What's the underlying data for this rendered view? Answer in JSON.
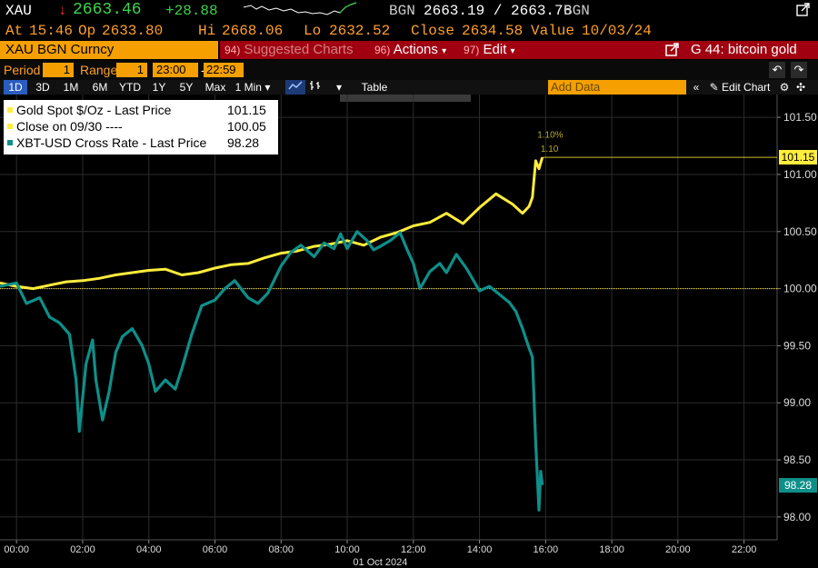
{
  "header": {
    "ticker": "XAU",
    "arrow": "↓",
    "last": "2663.46",
    "change": "+28.88",
    "source1": "BGN",
    "bid_ask": "2663.19 / 2663.76",
    "source2": "BGN",
    "at_label": "At",
    "time": "15:46",
    "op_label": "Op",
    "open": "2633.80",
    "hi_label": "Hi",
    "high": "2668.06",
    "lo_label": "Lo",
    "low": "2632.52",
    "close_label": "Close",
    "close": "2634.58",
    "value_label": "Value",
    "value_date": "10/03/24"
  },
  "toolbar": {
    "security": "XAU BGN Curncy",
    "menu1_num": "94)",
    "menu1": "Suggested Charts",
    "menu2_num": "96)",
    "menu2": "Actions",
    "menu3_num": "97)",
    "menu3": "Edit",
    "chart_title": "G 44: bitcoin gold"
  },
  "settings": {
    "period_label": "Period",
    "period": "1",
    "range_label": "Range",
    "range": "1",
    "start": "23:00",
    "end": "22:59"
  },
  "timeframes": [
    "1D",
    "3D",
    "1M",
    "6M",
    "YTD",
    "1Y",
    "5Y",
    "Max"
  ],
  "interval": "1 Min",
  "table_label": "Table",
  "add_data_placeholder": "Add Data",
  "edit_chart": "Edit Chart",
  "colors": {
    "gold": "#ffec3c",
    "btc": "#0e8f8a",
    "orange": "#f5a000",
    "red": "#a00010"
  },
  "chart_data": {
    "type": "line",
    "title": "",
    "xlabel": "01 Oct 2024",
    "ylabel": "",
    "x_ticks": [
      "00:00",
      "02:00",
      "04:00",
      "06:00",
      "08:00",
      "10:00",
      "12:00",
      "14:00",
      "16:00",
      "18:00",
      "20:00",
      "22:00"
    ],
    "x_range": [
      -0.5,
      23.0
    ],
    "y_ticks": [
      "101.50",
      "101.00",
      "100.50",
      "100.00",
      "99.50",
      "99.00",
      "98.50",
      "98.00"
    ],
    "ylim": [
      97.8,
      101.7
    ],
    "reference_line": 100.0,
    "grid": true,
    "legend_position": "top-left",
    "series": [
      {
        "name": "Gold Spot $/Oz - Last Price",
        "last_value": "101.15",
        "points": [
          [
            -0.5,
            100.05
          ],
          [
            0.0,
            100.02
          ],
          [
            0.5,
            100.0
          ],
          [
            1.0,
            100.03
          ],
          [
            1.5,
            100.06
          ],
          [
            2.0,
            100.07
          ],
          [
            2.5,
            100.09
          ],
          [
            3.0,
            100.12
          ],
          [
            3.5,
            100.14
          ],
          [
            4.0,
            100.16
          ],
          [
            4.5,
            100.17
          ],
          [
            5.0,
            100.12
          ],
          [
            5.5,
            100.14
          ],
          [
            6.0,
            100.18
          ],
          [
            6.5,
            100.21
          ],
          [
            7.0,
            100.22
          ],
          [
            7.5,
            100.27
          ],
          [
            8.0,
            100.31
          ],
          [
            8.5,
            100.33
          ],
          [
            9.0,
            100.37
          ],
          [
            9.5,
            100.39
          ],
          [
            10.0,
            100.42
          ],
          [
            10.5,
            100.38
          ],
          [
            11.0,
            100.45
          ],
          [
            11.5,
            100.49
          ],
          [
            12.0,
            100.55
          ],
          [
            12.5,
            100.58
          ],
          [
            13.0,
            100.66
          ],
          [
            13.5,
            100.57
          ],
          [
            14.0,
            100.71
          ],
          [
            14.5,
            100.83
          ],
          [
            15.0,
            100.74
          ],
          [
            15.3,
            100.66
          ],
          [
            15.5,
            100.72
          ],
          [
            15.6,
            100.8
          ],
          [
            15.7,
            101.12
          ],
          [
            15.8,
            101.05
          ],
          [
            15.9,
            101.15
          ]
        ]
      },
      {
        "name": "Close on 09/30 ----",
        "last_value": "100.05",
        "points": []
      },
      {
        "name": "XBT-USD Cross Rate - Last Price",
        "last_value": "98.28",
        "points": [
          [
            -0.5,
            100.02
          ],
          [
            0.0,
            100.05
          ],
          [
            0.3,
            99.87
          ],
          [
            0.7,
            99.92
          ],
          [
            1.0,
            99.75
          ],
          [
            1.3,
            99.7
          ],
          [
            1.6,
            99.6
          ],
          [
            1.8,
            99.2
          ],
          [
            1.9,
            98.75
          ],
          [
            2.1,
            99.34
          ],
          [
            2.3,
            99.55
          ],
          [
            2.4,
            99.2
          ],
          [
            2.6,
            98.85
          ],
          [
            2.8,
            99.1
          ],
          [
            3.0,
            99.44
          ],
          [
            3.2,
            99.58
          ],
          [
            3.5,
            99.65
          ],
          [
            3.8,
            99.5
          ],
          [
            4.0,
            99.34
          ],
          [
            4.2,
            99.1
          ],
          [
            4.5,
            99.2
          ],
          [
            4.8,
            99.12
          ],
          [
            5.0,
            99.3
          ],
          [
            5.3,
            99.6
          ],
          [
            5.6,
            99.85
          ],
          [
            6.0,
            99.9
          ],
          [
            6.3,
            100.0
          ],
          [
            6.6,
            100.07
          ],
          [
            7.0,
            99.92
          ],
          [
            7.3,
            99.87
          ],
          [
            7.6,
            99.96
          ],
          [
            8.0,
            100.2
          ],
          [
            8.3,
            100.32
          ],
          [
            8.6,
            100.38
          ],
          [
            9.0,
            100.28
          ],
          [
            9.3,
            100.4
          ],
          [
            9.6,
            100.35
          ],
          [
            9.8,
            100.48
          ],
          [
            10.0,
            100.35
          ],
          [
            10.3,
            100.5
          ],
          [
            10.6,
            100.42
          ],
          [
            10.8,
            100.34
          ],
          [
            11.0,
            100.37
          ],
          [
            11.3,
            100.42
          ],
          [
            11.6,
            100.49
          ],
          [
            11.8,
            100.35
          ],
          [
            12.0,
            100.22
          ],
          [
            12.2,
            100.0
          ],
          [
            12.5,
            100.15
          ],
          [
            12.8,
            100.22
          ],
          [
            13.0,
            100.14
          ],
          [
            13.3,
            100.3
          ],
          [
            13.6,
            100.18
          ],
          [
            13.8,
            100.08
          ],
          [
            14.0,
            99.98
          ],
          [
            14.3,
            100.02
          ],
          [
            14.6,
            99.95
          ],
          [
            14.9,
            99.88
          ],
          [
            15.1,
            99.8
          ],
          [
            15.3,
            99.65
          ],
          [
            15.5,
            99.48
          ],
          [
            15.6,
            99.4
          ],
          [
            15.7,
            98.65
          ],
          [
            15.8,
            98.06
          ],
          [
            15.85,
            98.4
          ],
          [
            15.9,
            98.28
          ]
        ]
      }
    ],
    "annotations": [
      "1.10%",
      "1.10"
    ]
  }
}
